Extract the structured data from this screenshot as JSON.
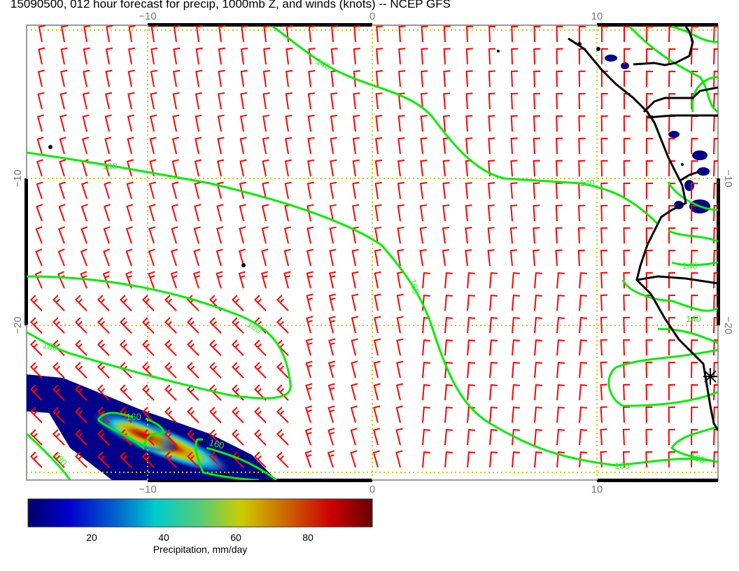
{
  "title": "15090500, 012 hour forecast for precip, 1000mb Z, and winds (knots) -- NCEP GFS",
  "map": {
    "lon_ticks_top": [
      "−10",
      "0",
      "10"
    ],
    "lon_ticks_bottom": [
      "−10",
      "0",
      "10"
    ],
    "lat_ticks_left": [
      "−10",
      "−20"
    ],
    "lat_ticks_right": [
      "−10",
      "−20"
    ],
    "contour_labels": [
      "140",
      "140",
      "140",
      "140",
      "160",
      "160",
      "160",
      "160",
      "160",
      "160",
      "180",
      "180",
      "180"
    ],
    "colors": {
      "wind_barbs": "#ff0000",
      "contours": "#00ee00",
      "coastline": "#000000",
      "gridlines": "#cccc00"
    }
  },
  "colorbar": {
    "label": "Precipitation, mm/day",
    "ticks": [
      "20",
      "40",
      "60",
      "80"
    ],
    "colors": [
      "#00006a",
      "#0000cc",
      "#0066cc",
      "#00cccc",
      "#55cc77",
      "#cccc00",
      "#cc7700",
      "#cc0000",
      "#660000"
    ]
  }
}
